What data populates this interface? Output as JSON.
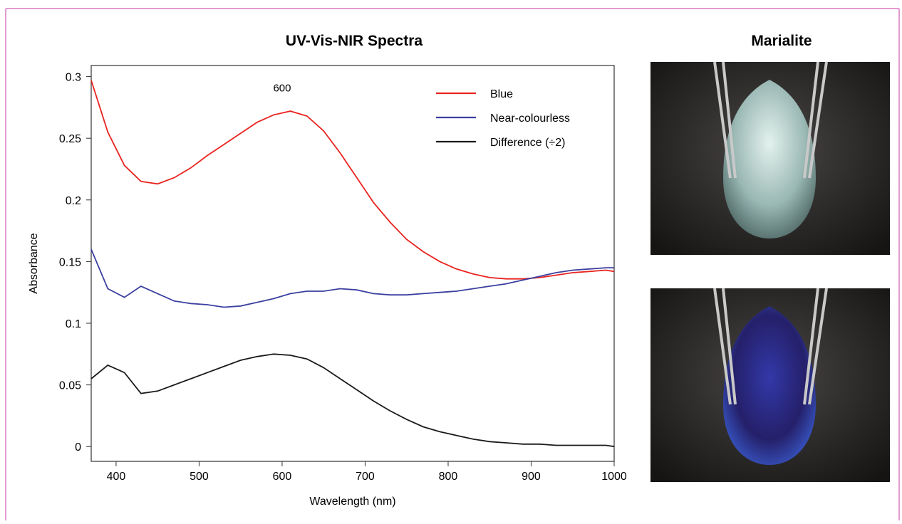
{
  "chart_data": {
    "type": "line",
    "title": "UV-Vis-NIR Spectra",
    "x_label": "Wavelength (nm)",
    "y_label": "Absorbance",
    "xlim": [
      370,
      1000
    ],
    "ylim": [
      -0.012,
      0.309
    ],
    "xticks": [
      400,
      500,
      600,
      700,
      800,
      900,
      1000
    ],
    "yticks": [
      0,
      0.05,
      0.1,
      0.15,
      0.2,
      0.25,
      0.3
    ],
    "legend": "upper right",
    "annotations": [
      {
        "text": "600",
        "x": 600,
        "y": 0.288
      }
    ],
    "x": [
      370,
      390,
      410,
      430,
      450,
      470,
      490,
      510,
      530,
      550,
      570,
      590,
      610,
      630,
      650,
      670,
      690,
      710,
      730,
      750,
      770,
      790,
      810,
      830,
      850,
      870,
      890,
      910,
      930,
      950,
      970,
      990,
      1000
    ],
    "series": [
      {
        "name": "Blue",
        "color": "#e8231f",
        "values": [
          0.297,
          0.255,
          0.228,
          0.215,
          0.213,
          0.218,
          0.226,
          0.236,
          0.245,
          0.254,
          0.263,
          0.269,
          0.272,
          0.268,
          0.256,
          0.238,
          0.218,
          0.198,
          0.182,
          0.168,
          0.158,
          0.15,
          0.144,
          0.14,
          0.137,
          0.136,
          0.136,
          0.137,
          0.139,
          0.141,
          0.142,
          0.143,
          0.142
        ]
      },
      {
        "name": "Near-colourless",
        "color": "#3b3fa0",
        "values": [
          0.16,
          0.128,
          0.121,
          0.13,
          0.124,
          0.118,
          0.116,
          0.115,
          0.113,
          0.114,
          0.117,
          0.12,
          0.124,
          0.126,
          0.126,
          0.128,
          0.127,
          0.124,
          0.123,
          0.123,
          0.124,
          0.125,
          0.126,
          0.128,
          0.13,
          0.132,
          0.135,
          0.138,
          0.141,
          0.143,
          0.144,
          0.145,
          0.145
        ]
      },
      {
        "name": "Difference (÷2)",
        "color": "#1a1a1a",
        "values": [
          0.055,
          0.066,
          0.06,
          0.043,
          0.045,
          0.05,
          0.055,
          0.06,
          0.065,
          0.07,
          0.073,
          0.075,
          0.074,
          0.071,
          0.064,
          0.055,
          0.046,
          0.037,
          0.029,
          0.022,
          0.016,
          0.012,
          0.009,
          0.006,
          0.004,
          0.003,
          0.002,
          0.002,
          0.001,
          0.001,
          0.001,
          0.001,
          0
        ]
      }
    ]
  },
  "images": {
    "title": "Marialite"
  }
}
